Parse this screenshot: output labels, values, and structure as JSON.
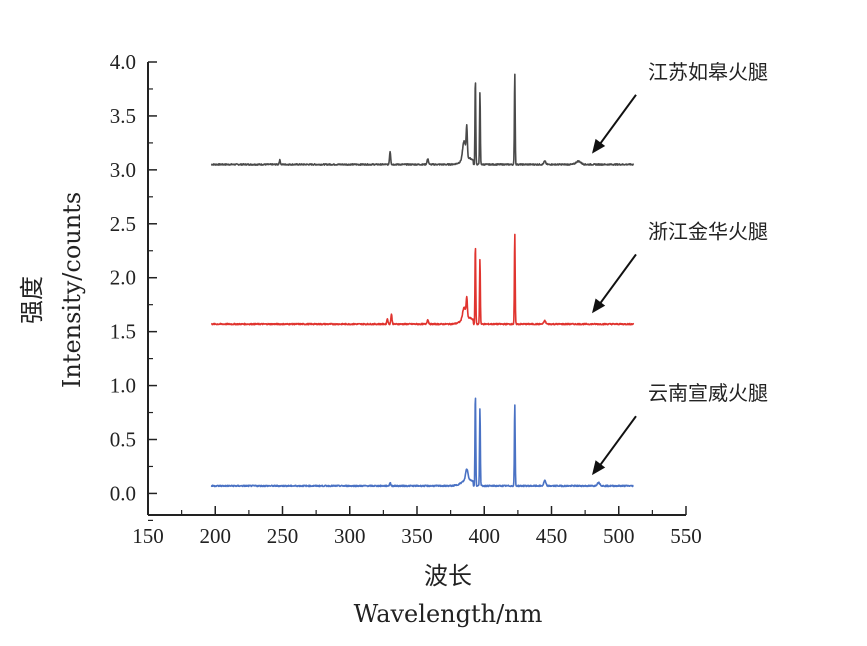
{
  "chart_data": {
    "type": "line",
    "xlabel_cn": "波长",
    "xlabel_en": "Wavelength/nm",
    "ylabel_cn": "强度",
    "ylabel_en": "Intensity/counts",
    "xlim": [
      150,
      550
    ],
    "ylim": [
      -0.2,
      4.0
    ],
    "x_ticks": [
      "150",
      "200",
      "250",
      "300",
      "350",
      "400",
      "450",
      "500",
      "550"
    ],
    "y_ticks": [
      "0.0",
      "0.5",
      "1.0",
      "1.5",
      "2.0",
      "2.5",
      "3.0",
      "3.5",
      "4.0"
    ],
    "x_tick_values": [
      150,
      200,
      250,
      300,
      350,
      400,
      450,
      500,
      550
    ],
    "y_tick_values": [
      0.0,
      0.5,
      1.0,
      1.5,
      2.0,
      2.5,
      3.0,
      3.5,
      4.0
    ],
    "grid": false,
    "x_range": [
      197,
      511
    ],
    "series": [
      {
        "name": "江苏如皋火腿",
        "color": "#4a4a4a",
        "baseline": 3.05,
        "peaks": [
          {
            "x": 248,
            "y": 3.09,
            "w": 0.6
          },
          {
            "x": 330,
            "y": 3.17,
            "w": 0.6
          },
          {
            "x": 358,
            "y": 3.1,
            "w": 0.8
          },
          {
            "x": 385,
            "y": 3.22,
            "w": 1.5
          },
          {
            "x": 387,
            "y": 3.33,
            "w": 0.6
          },
          {
            "x": 393.4,
            "y": 3.86,
            "w": 0.4
          },
          {
            "x": 396.8,
            "y": 3.72,
            "w": 0.4
          },
          {
            "x": 422.7,
            "y": 3.9,
            "w": 0.4
          },
          {
            "x": 445,
            "y": 3.08,
            "w": 1.0
          },
          {
            "x": 470,
            "y": 3.08,
            "w": 2.5
          }
        ]
      },
      {
        "name": "浙江金华火腿",
        "color": "#e0342f",
        "baseline": 1.57,
        "peaks": [
          {
            "x": 328,
            "y": 1.62,
            "w": 0.6
          },
          {
            "x": 331,
            "y": 1.66,
            "w": 0.6
          },
          {
            "x": 358,
            "y": 1.61,
            "w": 0.8
          },
          {
            "x": 385,
            "y": 1.68,
            "w": 1.5
          },
          {
            "x": 387,
            "y": 1.75,
            "w": 0.6
          },
          {
            "x": 393.4,
            "y": 2.32,
            "w": 0.4
          },
          {
            "x": 396.8,
            "y": 2.18,
            "w": 0.4
          },
          {
            "x": 422.7,
            "y": 2.41,
            "w": 0.4
          },
          {
            "x": 445,
            "y": 1.6,
            "w": 1.0
          }
        ]
      },
      {
        "name": "云南宣威火腿",
        "color": "#4a72c4",
        "baseline": 0.07,
        "peaks": [
          {
            "x": 330,
            "y": 0.1,
            "w": 0.6
          },
          {
            "x": 387,
            "y": 0.17,
            "w": 1.2
          },
          {
            "x": 393.4,
            "y": 0.94,
            "w": 0.4
          },
          {
            "x": 396.8,
            "y": 0.8,
            "w": 0.4
          },
          {
            "x": 422.7,
            "y": 0.83,
            "w": 0.4
          },
          {
            "x": 445,
            "y": 0.12,
            "w": 1.0
          },
          {
            "x": 485,
            "y": 0.1,
            "w": 1.5
          }
        ]
      }
    ],
    "annotations": [
      {
        "label": "江苏如皋火腿",
        "series": 0
      },
      {
        "label": "浙江金华火腿",
        "series": 1
      },
      {
        "label": "云南宣威火腿",
        "series": 2
      }
    ]
  }
}
